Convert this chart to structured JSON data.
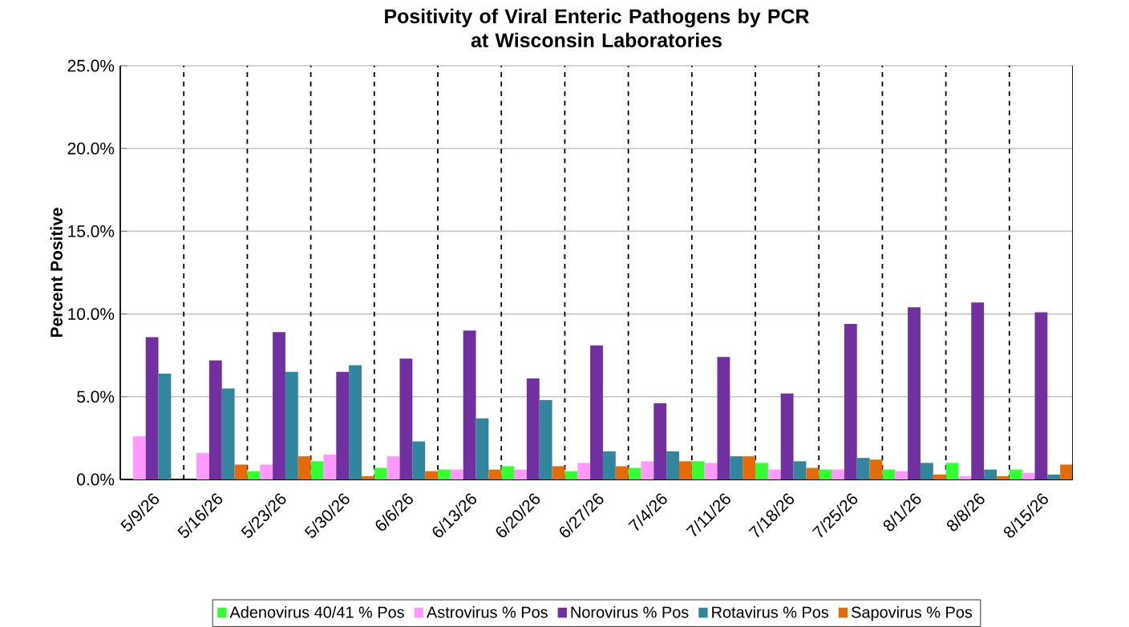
{
  "chart_data": {
    "type": "bar",
    "title": "Positivity of Viral Enteric Pathogens by PCR\nat Wisconsin Laboratories",
    "ylabel": "Percent Positive",
    "categories": [
      "5/9/26",
      "5/16/26",
      "5/23/26",
      "5/30/26",
      "6/6/26",
      "6/13/26",
      "6/20/26",
      "6/27/26",
      "7/4/26",
      "7/11/26",
      "7/18/26",
      "7/25/26",
      "8/1/26",
      "8/8/26",
      "8/15/26"
    ],
    "series": [
      {
        "name": "Adenovirus 40/41 % Pos",
        "color": "#33ff33",
        "values": [
          0,
          0,
          0.5,
          1.1,
          0.7,
          0.6,
          0.8,
          0.5,
          0.7,
          1.1,
          1.0,
          0.6,
          0.6,
          1.0,
          0.6
        ]
      },
      {
        "name": "Astrovirus % Pos",
        "color": "#ff99ff",
        "values": [
          2.6,
          1.6,
          0.9,
          1.5,
          1.4,
          0.6,
          0.6,
          1.0,
          1.1,
          1.0,
          0.6,
          0.6,
          0.5,
          0.2,
          0.4
        ]
      },
      {
        "name": "Norovirus % Pos",
        "color": "#7030a0",
        "values": [
          8.6,
          7.2,
          8.9,
          6.5,
          7.3,
          9.0,
          6.1,
          8.1,
          4.6,
          7.4,
          5.2,
          9.4,
          10.4,
          10.7,
          10.1
        ]
      },
      {
        "name": "Rotavirus % Pos",
        "color": "#31859c",
        "values": [
          6.4,
          5.5,
          6.5,
          6.9,
          2.3,
          3.7,
          4.8,
          1.7,
          1.7,
          1.4,
          1.1,
          1.3,
          1.0,
          0.6,
          0.3
        ]
      },
      {
        "name": "Sapovirus % Pos",
        "color": "#e36c09",
        "values": [
          0,
          0.9,
          1.4,
          0.2,
          0.5,
          0.6,
          0.8,
          0.8,
          1.1,
          1.4,
          0.7,
          1.2,
          0.3,
          0.2,
          0.9
        ]
      }
    ],
    "ylim": [
      0,
      25
    ],
    "yticks": [
      {
        "value": 0,
        "label": "0.0%"
      },
      {
        "value": 5,
        "label": "5.0%"
      },
      {
        "value": 10,
        "label": "10.0%"
      },
      {
        "value": 15,
        "label": "15.0%"
      },
      {
        "value": 20,
        "label": "20.0%"
      },
      {
        "value": 25,
        "label": "25.0%"
      }
    ],
    "grid": true,
    "legend": "bottom"
  }
}
